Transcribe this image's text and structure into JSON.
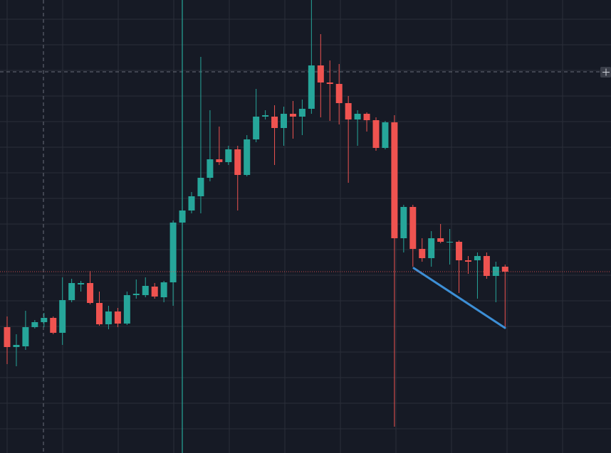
{
  "chart_data": {
    "type": "candlestick",
    "ylim": [
      0,
      637
    ],
    "up_color": "#26a69a",
    "down_color": "#ef5350",
    "open": [
      177,
      149,
      150,
      177,
      184,
      190,
      169,
      215,
      237,
      239,
      211,
      181,
      199,
      182,
      222,
      222,
      234,
      219,
      240,
      324,
      341,
      361,
      387,
      413,
      409,
      427,
      391,
      441,
      473,
      473,
      457,
      477,
      473,
      484,
      545,
      521,
      519,
      492,
      469,
      477,
      468,
      429,
      465,
      302,
      346,
      287,
      274,
      302,
      296,
      297,
      271,
      271,
      277,
      249,
      262
    ],
    "high": [
      192,
      167,
      200,
      187,
      197,
      192,
      247,
      245,
      242,
      256,
      227,
      207,
      204,
      227,
      244,
      247,
      239,
      242,
      327,
      347,
      367,
      557,
      482,
      459,
      432,
      432,
      447,
      512,
      482,
      489,
      487,
      495,
      497,
      637,
      589,
      552,
      547,
      502,
      482,
      479,
      472,
      467,
      475,
      349,
      349,
      302,
      312,
      322,
      315,
      299,
      277,
      282,
      282,
      269,
      265
    ],
    "low": [
      125,
      122,
      145,
      175,
      177,
      167,
      152,
      212,
      227,
      209,
      179,
      174,
      177,
      180,
      217,
      219,
      217,
      212,
      207,
      322,
      337,
      337,
      382,
      405,
      405,
      341,
      389,
      437,
      469,
      405,
      432,
      442,
      447,
      477,
      472,
      467,
      462,
      380,
      432,
      452,
      425,
      427,
      37,
      282,
      262,
      269,
      262,
      295,
      265,
      225,
      252,
      217,
      245,
      212,
      175
    ],
    "close": [
      149,
      152,
      177,
      184,
      190,
      169,
      215,
      239,
      239,
      211,
      181,
      199,
      182,
      222,
      224,
      235,
      220,
      240,
      324,
      341,
      361,
      387,
      413,
      409,
      427,
      391,
      441,
      473,
      475,
      457,
      477,
      473,
      484,
      545,
      521,
      519,
      492,
      469,
      477,
      468,
      429,
      465,
      302,
      346,
      287,
      274,
      302,
      297,
      297,
      271,
      269,
      277,
      249,
      262,
      255
    ]
  }
}
